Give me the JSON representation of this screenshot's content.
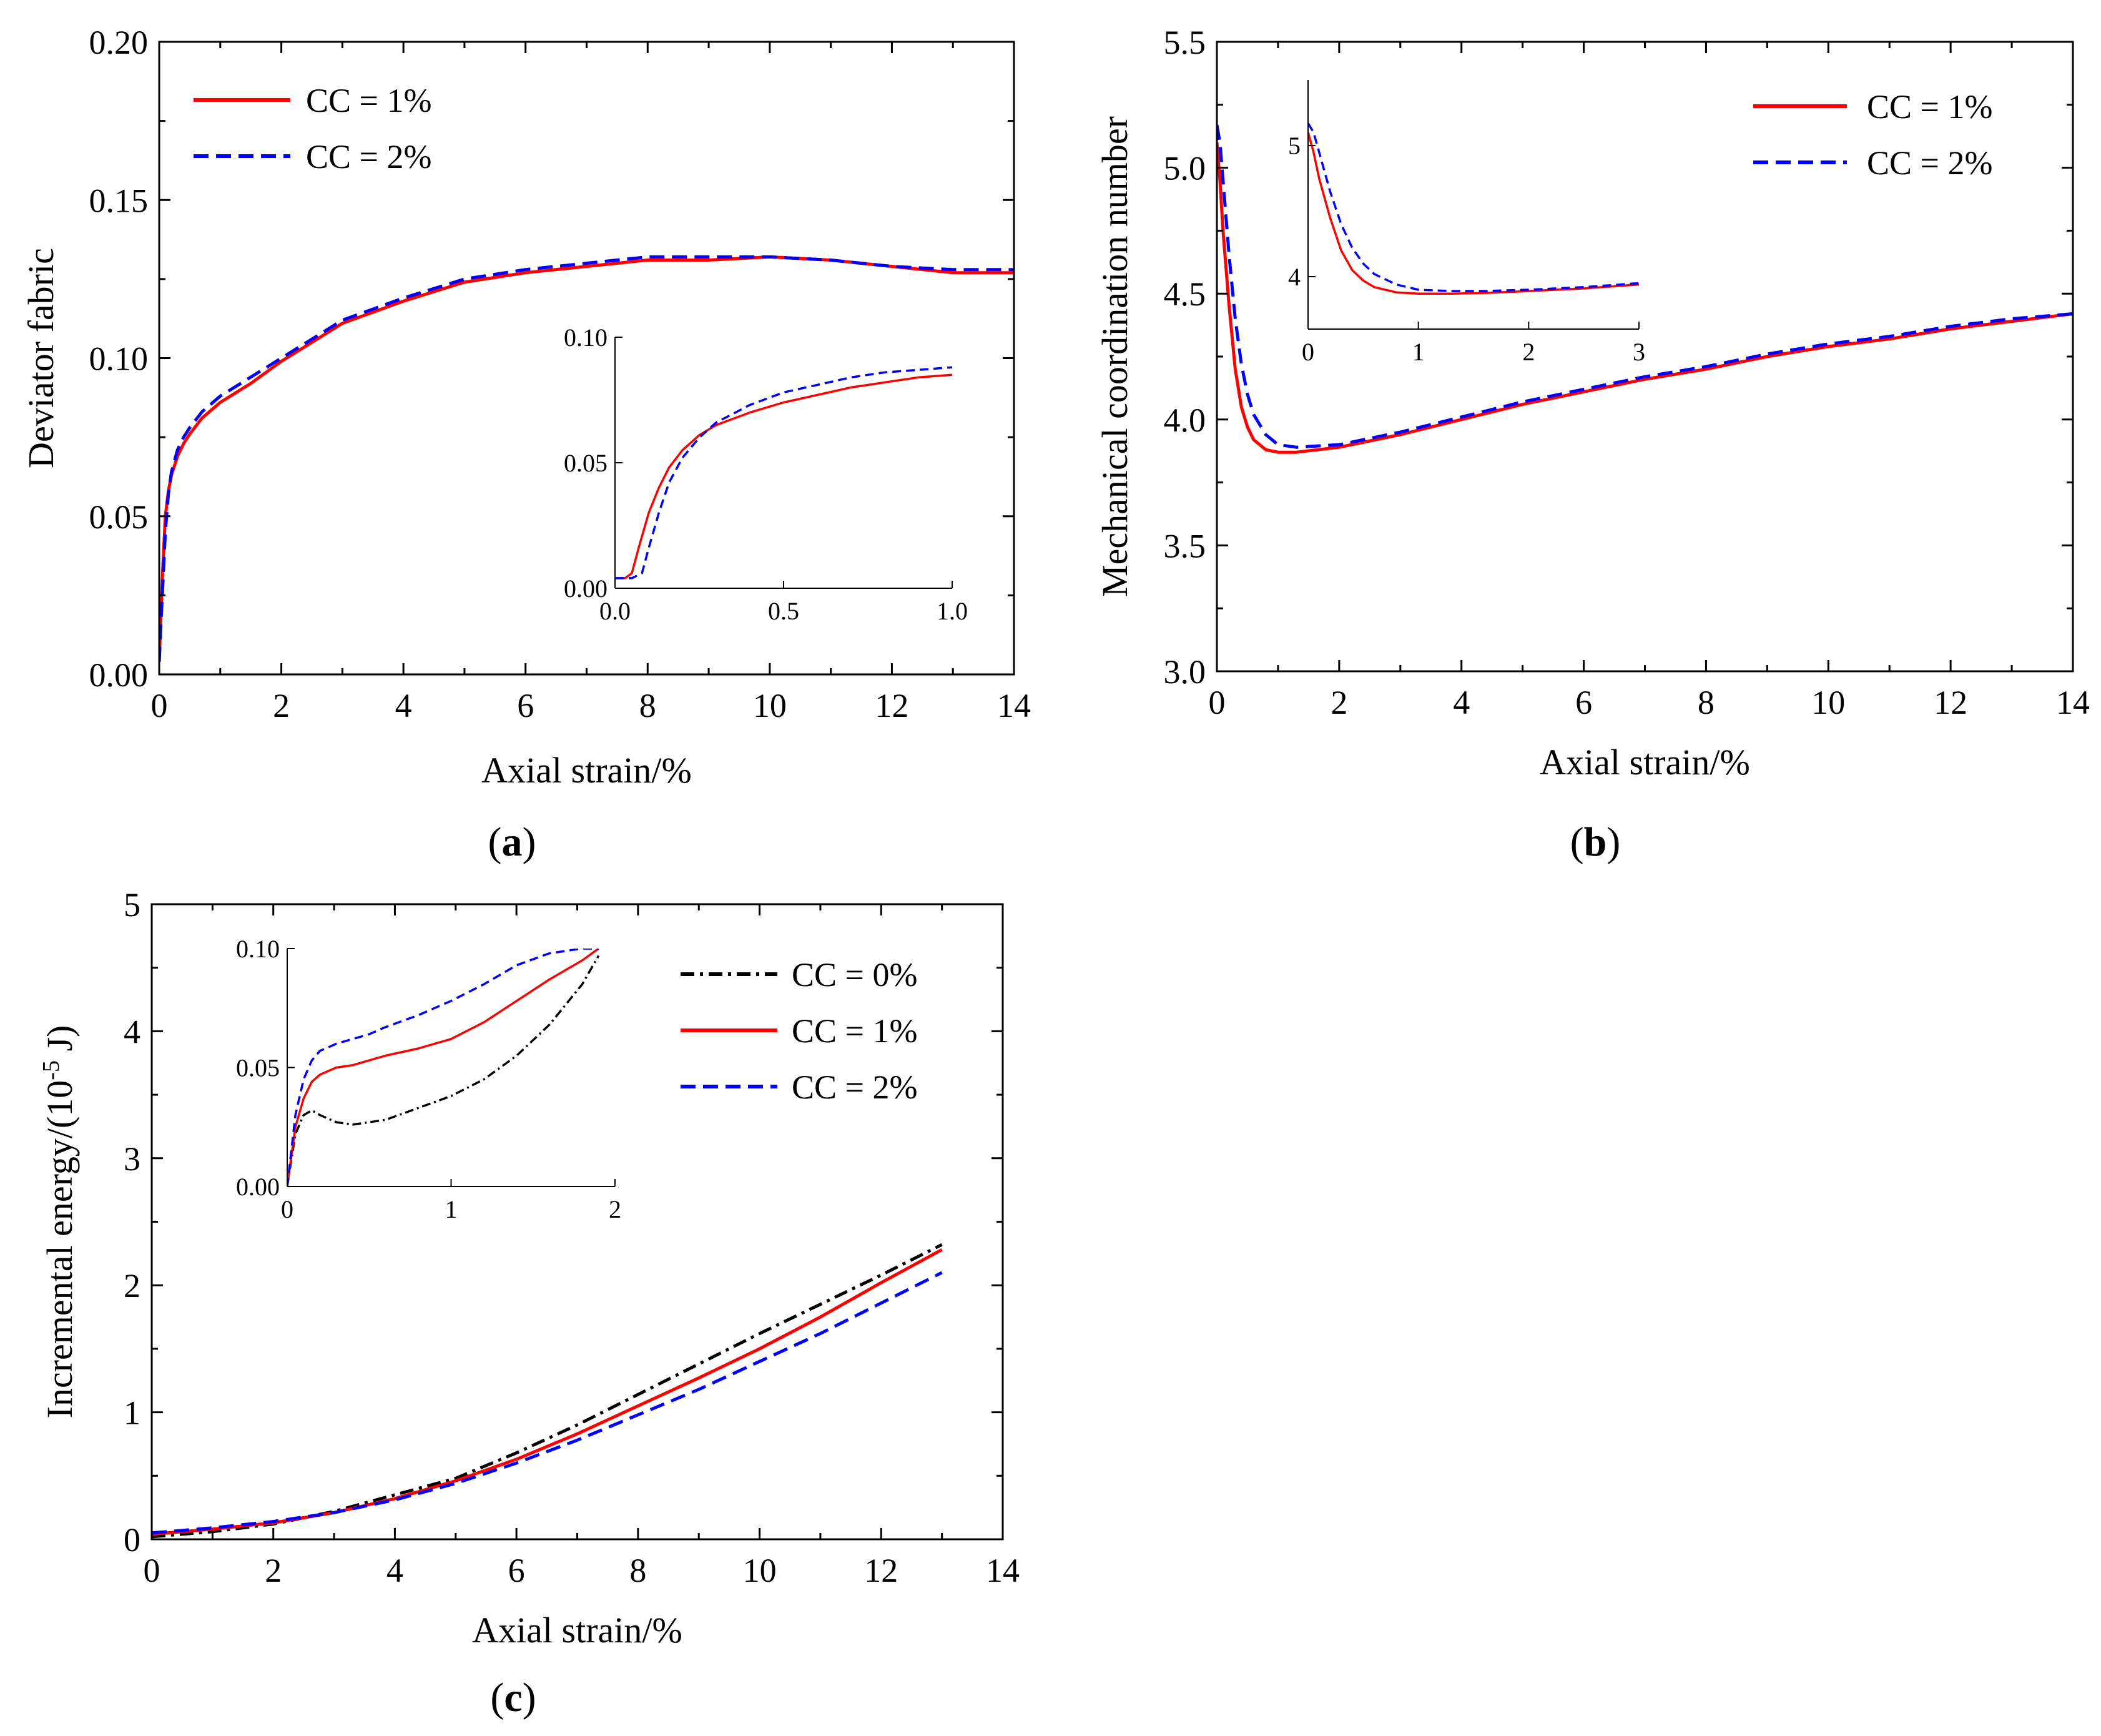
{
  "colors": {
    "cc0": "#000000",
    "cc1": "#ff0000",
    "cc2": "#0000ff",
    "axis": "#000000"
  },
  "chart_data": [
    {
      "id": "a",
      "type": "line",
      "panel_label": "a",
      "xlabel": "Axial strain/%",
      "ylabel": "Deviator fabric",
      "xlim": [
        0,
        14
      ],
      "ylim": [
        0,
        0.2
      ],
      "xticks": [
        0,
        2,
        4,
        6,
        8,
        10,
        12,
        14
      ],
      "xtick_labels": [
        "0",
        "2",
        "4",
        "6",
        "8",
        "10",
        "12",
        "14"
      ],
      "yticks": [
        0,
        0.05,
        0.1,
        0.15,
        0.2
      ],
      "ytick_labels": [
        "0.00",
        "0.05",
        "0.10",
        "0.15",
        "0.20"
      ],
      "legend_position": "top-left",
      "series": [
        {
          "name": "CC = 1%",
          "style": "solid",
          "color": "#ff0000",
          "x": [
            0,
            0.05,
            0.1,
            0.15,
            0.2,
            0.3,
            0.4,
            0.5,
            0.7,
            1,
            1.5,
            2,
            2.5,
            3,
            4,
            5,
            6,
            7,
            8,
            9,
            10,
            11,
            12,
            13,
            14
          ],
          "y": [
            0.004,
            0.03,
            0.05,
            0.058,
            0.063,
            0.069,
            0.073,
            0.076,
            0.081,
            0.086,
            0.092,
            0.099,
            0.105,
            0.111,
            0.118,
            0.124,
            0.127,
            0.129,
            0.131,
            0.131,
            0.132,
            0.131,
            0.129,
            0.127,
            0.127
          ]
        },
        {
          "name": "CC = 2%",
          "style": "dashed",
          "color": "#0000ff",
          "x": [
            0,
            0.05,
            0.1,
            0.15,
            0.2,
            0.3,
            0.4,
            0.5,
            0.7,
            1,
            1.5,
            2,
            2.5,
            3,
            4,
            5,
            6,
            7,
            8,
            9,
            10,
            11,
            12,
            13,
            14
          ],
          "y": [
            0.004,
            0.025,
            0.045,
            0.057,
            0.064,
            0.071,
            0.075,
            0.078,
            0.083,
            0.088,
            0.094,
            0.1,
            0.106,
            0.112,
            0.119,
            0.125,
            0.128,
            0.13,
            0.132,
            0.132,
            0.132,
            0.131,
            0.129,
            0.128,
            0.128
          ]
        }
      ],
      "inset": {
        "xlim": [
          0,
          1
        ],
        "ylim": [
          0,
          0.1
        ],
        "xticks": [
          0,
          0.5,
          1
        ],
        "xtick_labels": [
          "0.0",
          "0.5",
          "1.0"
        ],
        "yticks": [
          0,
          0.05,
          0.1
        ],
        "ytick_labels": [
          "0.00",
          "0.05",
          "0.10"
        ],
        "series": [
          {
            "name": "CC = 1%",
            "style": "solid",
            "color": "#ff0000",
            "x": [
              0,
              0.03,
              0.05,
              0.07,
              0.1,
              0.13,
              0.16,
              0.2,
              0.25,
              0.3,
              0.4,
              0.5,
              0.6,
              0.7,
              0.8,
              0.9,
              1.0
            ],
            "y": [
              0.004,
              0.004,
              0.006,
              0.016,
              0.03,
              0.04,
              0.048,
              0.055,
              0.061,
              0.065,
              0.07,
              0.074,
              0.077,
              0.08,
              0.082,
              0.084,
              0.085
            ]
          },
          {
            "name": "CC = 2%",
            "style": "dashed",
            "color": "#0000ff",
            "x": [
              0,
              0.03,
              0.05,
              0.08,
              0.1,
              0.13,
              0.16,
              0.2,
              0.25,
              0.3,
              0.4,
              0.5,
              0.6,
              0.7,
              0.8,
              0.9,
              1.0
            ],
            "y": [
              0.004,
              0.004,
              0.004,
              0.006,
              0.016,
              0.03,
              0.042,
              0.052,
              0.06,
              0.066,
              0.073,
              0.078,
              0.081,
              0.084,
              0.086,
              0.087,
              0.088
            ]
          }
        ]
      }
    },
    {
      "id": "b",
      "type": "line",
      "panel_label": "b",
      "xlabel": "Axial strain/%",
      "ylabel": "Mechanical coordination number",
      "xlim": [
        0,
        14
      ],
      "ylim": [
        3.0,
        5.5
      ],
      "xticks": [
        0,
        2,
        4,
        6,
        8,
        10,
        12,
        14
      ],
      "xtick_labels": [
        "0",
        "2",
        "4",
        "6",
        "8",
        "10",
        "12",
        "14"
      ],
      "yticks": [
        3.0,
        3.5,
        4.0,
        4.5,
        5.0,
        5.5
      ],
      "ytick_labels": [
        "3.0",
        "3.5",
        "4.0",
        "4.5",
        "5.0",
        "5.5"
      ],
      "legend_position": "top-right",
      "series": [
        {
          "name": "CC = 1%",
          "style": "solid",
          "color": "#ff0000",
          "x": [
            0,
            0.05,
            0.1,
            0.2,
            0.3,
            0.4,
            0.5,
            0.6,
            0.8,
            1,
            1.3,
            2,
            3,
            4,
            5,
            6,
            7,
            8,
            9,
            10,
            11,
            12,
            13,
            14
          ],
          "y": [
            5.1,
            4.95,
            4.75,
            4.45,
            4.2,
            4.05,
            3.97,
            3.92,
            3.88,
            3.87,
            3.87,
            3.89,
            3.94,
            4.0,
            4.06,
            4.11,
            4.16,
            4.2,
            4.25,
            4.29,
            4.32,
            4.36,
            4.39,
            4.42
          ]
        },
        {
          "name": "CC = 2%",
          "style": "dashed",
          "color": "#0000ff",
          "x": [
            0,
            0.05,
            0.1,
            0.2,
            0.3,
            0.4,
            0.5,
            0.6,
            0.8,
            1,
            1.3,
            2,
            3,
            4,
            5,
            6,
            7,
            8,
            9,
            10,
            11,
            12,
            13,
            14
          ],
          "y": [
            5.17,
            5.1,
            4.95,
            4.65,
            4.4,
            4.22,
            4.1,
            4.02,
            3.94,
            3.9,
            3.89,
            3.9,
            3.95,
            4.01,
            4.07,
            4.12,
            4.17,
            4.21,
            4.26,
            4.3,
            4.33,
            4.37,
            4.4,
            4.42
          ]
        }
      ],
      "inset": {
        "xlim": [
          0,
          3
        ],
        "ylim": [
          3.6,
          5.5
        ],
        "xticks": [
          0,
          1,
          2,
          3
        ],
        "xtick_labels": [
          "0",
          "1",
          "2",
          "3"
        ],
        "yticks": [
          4,
          5
        ],
        "ytick_labels": [
          "4",
          "5"
        ],
        "series": [
          {
            "name": "CC = 1%",
            "style": "solid",
            "color": "#ff0000",
            "x": [
              0,
              0.05,
              0.1,
              0.2,
              0.3,
              0.4,
              0.5,
              0.6,
              0.8,
              1,
              1.3,
              1.6,
              2,
              2.5,
              3
            ],
            "y": [
              5.1,
              4.95,
              4.75,
              4.45,
              4.2,
              4.05,
              3.97,
              3.92,
              3.88,
              3.87,
              3.87,
              3.875,
              3.89,
              3.91,
              3.94
            ]
          },
          {
            "name": "CC = 2%",
            "style": "dashed",
            "color": "#0000ff",
            "x": [
              0,
              0.05,
              0.1,
              0.2,
              0.3,
              0.4,
              0.5,
              0.6,
              0.8,
              1,
              1.3,
              1.6,
              2,
              2.5,
              3
            ],
            "y": [
              5.17,
              5.1,
              4.95,
              4.65,
              4.4,
              4.22,
              4.1,
              4.02,
              3.94,
              3.9,
              3.89,
              3.89,
              3.9,
              3.92,
              3.95
            ]
          }
        ]
      }
    },
    {
      "id": "c",
      "type": "line",
      "panel_label": "c",
      "xlabel": "Axial strain/%",
      "ylabel": "Incremental energy/(10",
      "ylabel_sup": "-5",
      "ylabel_end": " J)",
      "xlim": [
        0,
        14
      ],
      "ylim": [
        0,
        5
      ],
      "xticks": [
        0,
        2,
        4,
        6,
        8,
        10,
        12,
        14
      ],
      "xtick_labels": [
        "0",
        "2",
        "4",
        "6",
        "8",
        "10",
        "12",
        "14"
      ],
      "yticks": [
        0,
        1,
        2,
        3,
        4,
        5
      ],
      "ytick_labels": [
        "0",
        "1",
        "2",
        "3",
        "4",
        "5"
      ],
      "legend_position": "top-right",
      "series": [
        {
          "name": "CC = 0%",
          "style": "dashdot",
          "color": "#000000",
          "x": [
            0,
            1,
            2,
            3,
            4,
            5,
            6,
            7,
            8,
            9,
            10,
            11,
            12,
            13
          ],
          "y": [
            0.02,
            0.06,
            0.12,
            0.22,
            0.35,
            0.48,
            0.68,
            0.9,
            1.14,
            1.38,
            1.62,
            1.85,
            2.08,
            2.32
          ]
        },
        {
          "name": "CC = 1%",
          "style": "solid",
          "color": "#ff0000",
          "x": [
            0,
            1,
            2,
            3,
            4,
            5,
            6,
            7,
            8,
            9,
            10,
            11,
            12,
            13
          ],
          "y": [
            0.04,
            0.08,
            0.13,
            0.21,
            0.32,
            0.46,
            0.63,
            0.83,
            1.05,
            1.27,
            1.5,
            1.75,
            2.02,
            2.28
          ]
        },
        {
          "name": "CC = 2%",
          "style": "dashed",
          "color": "#0000ff",
          "x": [
            0,
            1,
            2,
            3,
            4,
            5,
            6,
            7,
            8,
            9,
            10,
            11,
            12,
            13
          ],
          "y": [
            0.05,
            0.09,
            0.14,
            0.21,
            0.31,
            0.44,
            0.6,
            0.78,
            0.98,
            1.18,
            1.4,
            1.62,
            1.86,
            2.1
          ]
        }
      ],
      "inset": {
        "xlim": [
          0,
          2
        ],
        "ylim": [
          0,
          0.1
        ],
        "xticks": [
          0,
          1,
          2
        ],
        "xtick_labels": [
          "0",
          "1",
          "2"
        ],
        "yticks": [
          0,
          0.05,
          0.1
        ],
        "ytick_labels": [
          "0.00",
          "0.05",
          "0.10"
        ],
        "series": [
          {
            "name": "CC = 0%",
            "style": "dashdot",
            "color": "#000000",
            "x": [
              0,
              0.05,
              0.1,
              0.15,
              0.2,
              0.3,
              0.4,
              0.5,
              0.6,
              0.8,
              1.0,
              1.2,
              1.4,
              1.6,
              1.8,
              1.9
            ],
            "y": [
              0,
              0.022,
              0.03,
              0.032,
              0.03,
              0.027,
              0.026,
              0.027,
              0.028,
              0.033,
              0.038,
              0.045,
              0.055,
              0.068,
              0.085,
              0.097
            ]
          },
          {
            "name": "CC = 1%",
            "style": "solid",
            "color": "#ff0000",
            "x": [
              0,
              0.05,
              0.1,
              0.15,
              0.2,
              0.3,
              0.4,
              0.5,
              0.6,
              0.8,
              1.0,
              1.2,
              1.4,
              1.6,
              1.8,
              1.9
            ],
            "y": [
              0,
              0.025,
              0.037,
              0.044,
              0.047,
              0.05,
              0.051,
              0.053,
              0.055,
              0.058,
              0.062,
              0.069,
              0.078,
              0.087,
              0.095,
              0.1
            ]
          },
          {
            "name": "CC = 2%",
            "style": "dashed",
            "color": "#0000ff",
            "x": [
              0,
              0.05,
              0.1,
              0.15,
              0.2,
              0.3,
              0.4,
              0.5,
              0.6,
              0.8,
              1.0,
              1.2,
              1.4,
              1.6,
              1.8,
              1.9
            ],
            "y": [
              0,
              0.03,
              0.045,
              0.053,
              0.057,
              0.06,
              0.062,
              0.064,
              0.067,
              0.072,
              0.078,
              0.085,
              0.093,
              0.098,
              0.1,
              0.1
            ]
          }
        ]
      }
    }
  ]
}
